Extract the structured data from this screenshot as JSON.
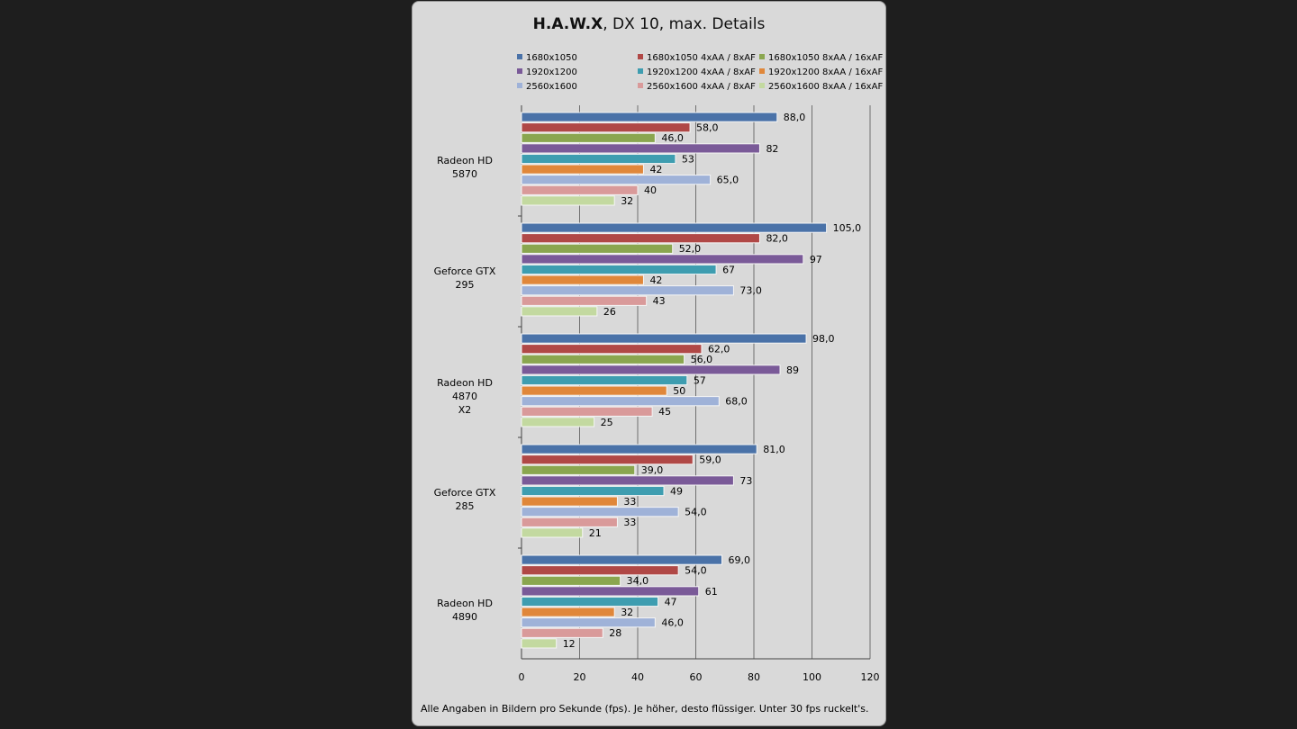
{
  "title_bold": "H.A.W.X",
  "title_rest": ", DX  10, max. Details",
  "footnote": "Alle Angaben in Bildern pro Sekunde (fps). Je höher, desto flüssiger. Unter 30 fps ruckelt's.",
  "chart_data": {
    "type": "bar",
    "orientation": "horizontal",
    "title": "H.A.W.X, DX  10, max. Details",
    "categories": [
      "Radeon HD 5870",
      "Geforce GTX 295",
      "Radeon HD 4870 X2",
      "Geforce GTX 285",
      "Radeon HD 4890"
    ],
    "category_lines": [
      [
        "Radeon HD 5870"
      ],
      [
        "Geforce GTX 295"
      ],
      [
        "Radeon HD 4870",
        "X2"
      ],
      [
        "Geforce GTX 285"
      ],
      [
        "Radeon HD 4890"
      ]
    ],
    "xlim": [
      0,
      120
    ],
    "xticks": [
      "0",
      "20",
      "40",
      "60",
      "80",
      "100",
      "120"
    ],
    "grid": true,
    "legend_position": "top",
    "series": [
      {
        "name": "1680x1050",
        "color": "#4a72a8",
        "values": [
          88,
          105,
          98,
          81,
          69
        ],
        "labels": [
          "88,0",
          "105,0",
          "98,0",
          "81,0",
          "69,0"
        ]
      },
      {
        "name": "1680x1050  4xAA / 8xAF",
        "color": "#b04846",
        "values": [
          58,
          82,
          62,
          59,
          54
        ],
        "labels": [
          "58,0",
          "82,0",
          "62,0",
          "59,0",
          "54,0"
        ]
      },
      {
        "name": "1680x1050  8xAA / 16xAF",
        "color": "#8aa64f",
        "values": [
          46,
          52,
          56,
          39,
          34
        ],
        "labels": [
          "46,0",
          "52,0",
          "56,0",
          "39,0",
          "34,0"
        ]
      },
      {
        "name": "1920x1200",
        "color": "#7a5a98",
        "values": [
          82,
          97,
          89,
          73,
          61
        ],
        "labels": [
          "82",
          "97",
          "89",
          "73",
          "61"
        ]
      },
      {
        "name": "1920x1200  4xAA / 8xAF",
        "color": "#3e9db0",
        "values": [
          53,
          67,
          57,
          49,
          47
        ],
        "labels": [
          "53",
          "67",
          "57",
          "49",
          "47"
        ]
      },
      {
        "name": "1920x1200  8xAA / 16xAF",
        "color": "#e0873a",
        "values": [
          42,
          42,
          50,
          33,
          32
        ],
        "labels": [
          "42",
          "42",
          "50",
          "33",
          "32"
        ]
      },
      {
        "name": "2560x1600",
        "color": "#9fb2d8",
        "values": [
          65,
          73,
          68,
          54,
          46
        ],
        "labels": [
          "65,0",
          "73,0",
          "68,0",
          "54,0",
          "46,0"
        ]
      },
      {
        "name": "2560x1600  4xAA / 8xAF",
        "color": "#d99a9a",
        "values": [
          40,
          43,
          45,
          33,
          28
        ],
        "labels": [
          "40",
          "43",
          "45",
          "33",
          "28"
        ]
      },
      {
        "name": "2560x1600  8xAA / 16xAF",
        "color": "#c3d9a0",
        "values": [
          32,
          26,
          25,
          21,
          12
        ],
        "labels": [
          "32",
          "26",
          "25",
          "21",
          "12"
        ]
      }
    ]
  }
}
